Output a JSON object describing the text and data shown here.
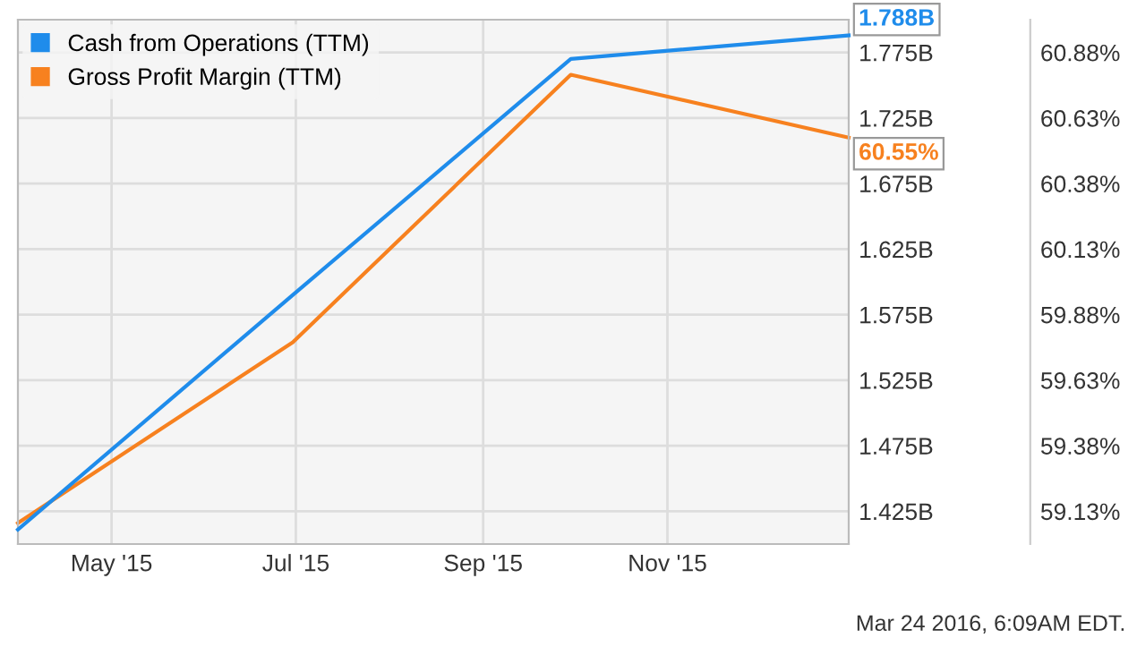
{
  "chart_data": {
    "type": "line",
    "x": [
      "2015-03-31",
      "2015-06-30",
      "2015-09-30",
      "2015-12-31"
    ],
    "series": [
      {
        "name": "Cash from Operations (TTM)",
        "color": "#1f8ceb",
        "values": [
          1.411,
          1.59,
          1.77,
          1.788
        ],
        "value_labels": [
          null,
          null,
          null,
          "1.788B"
        ]
      },
      {
        "name": "Gross Profit Margin (TTM)",
        "color": "#f7811f",
        "axis": "y2",
        "values": [
          59.08,
          59.77,
          60.79,
          60.55
        ],
        "value_labels": [
          null,
          null,
          null,
          "60.55%"
        ]
      }
    ],
    "xlim": [
      "2015-03-31",
      "2015-12-31"
    ],
    "xticks": [
      {
        "value": "2015-05-01",
        "label": "May '15"
      },
      {
        "value": "2015-07-01",
        "label": "Jul '15"
      },
      {
        "value": "2015-09-01",
        "label": "Sep '15"
      },
      {
        "value": "2015-11-01",
        "label": "Nov '15"
      }
    ],
    "ylim": [
      1.4,
      1.8
    ],
    "yticks": [
      {
        "value": 1.425,
        "label": "1.425B"
      },
      {
        "value": 1.475,
        "label": "1.475B"
      },
      {
        "value": 1.525,
        "label": "1.525B"
      },
      {
        "value": 1.575,
        "label": "1.575B"
      },
      {
        "value": 1.625,
        "label": "1.625B"
      },
      {
        "value": 1.675,
        "label": "1.675B"
      },
      {
        "value": 1.725,
        "label": "1.725B"
      },
      {
        "value": 1.775,
        "label": "1.775B"
      }
    ],
    "y2lim": [
      59.0,
      61.0
    ],
    "y2ticks": [
      {
        "value": 59.125,
        "label": "59.13%"
      },
      {
        "value": 59.375,
        "label": "59.38%"
      },
      {
        "value": 59.625,
        "label": "59.63%"
      },
      {
        "value": 59.875,
        "label": "59.88%"
      },
      {
        "value": 60.125,
        "label": "60.13%"
      },
      {
        "value": 60.375,
        "label": "60.38%"
      },
      {
        "value": 60.625,
        "label": "60.63%"
      },
      {
        "value": 60.875,
        "label": "60.88%"
      }
    ],
    "grid": true,
    "legend": "top left",
    "marker": "none",
    "line_style": "solid",
    "annotations": [
      "Mar 24 2016, 6:09AM EDT."
    ]
  }
}
